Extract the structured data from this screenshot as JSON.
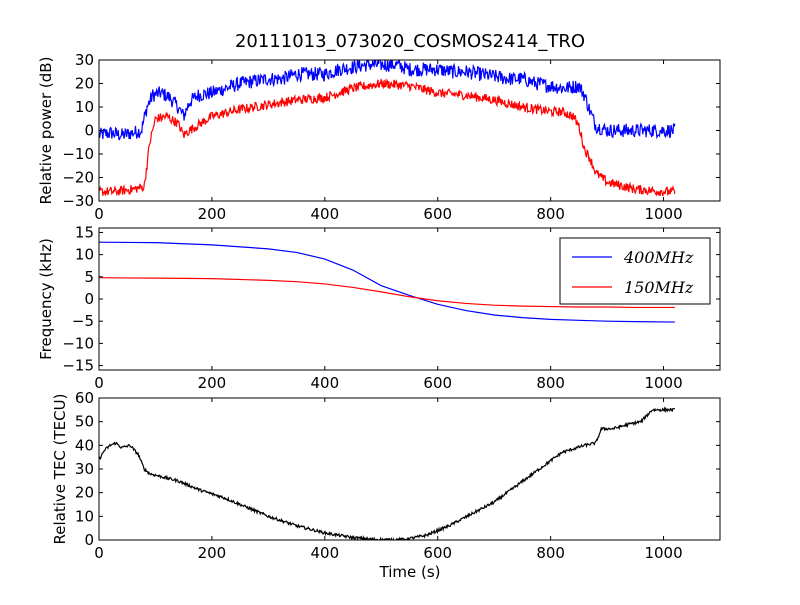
{
  "figure": {
    "title": "20111013_073020_COSMOS2414_TRO",
    "xlabel": "Time (s)",
    "colors": {
      "blue": "#0000ff",
      "red": "#ff0000",
      "black": "#000000"
    }
  },
  "chart_data": [
    {
      "type": "line",
      "title": "20111013_073020_COSMOS2414_TRO",
      "xlabel": "",
      "ylabel": "Relative power (dB)",
      "xlim": [
        0,
        1100
      ],
      "ylim": [
        -30,
        30
      ],
      "xticks": [
        0,
        200,
        400,
        600,
        800,
        1000
      ],
      "yticks": [
        -30,
        -20,
        -10,
        0,
        10,
        20,
        30
      ],
      "grid": false,
      "series": [
        {
          "color": "#0000ff",
          "noise": 3,
          "x": [
            0,
            20,
            40,
            60,
            75,
            85,
            95,
            110,
            125,
            140,
            150,
            160,
            175,
            200,
            225,
            250,
            275,
            300,
            325,
            350,
            375,
            400,
            425,
            450,
            475,
            500,
            525,
            550,
            575,
            600,
            625,
            650,
            675,
            700,
            725,
            750,
            775,
            800,
            825,
            850,
            860,
            870,
            880,
            900,
            950,
            1000,
            1020
          ],
          "y": [
            -2,
            -1,
            -2,
            -1,
            0,
            10,
            15,
            16,
            14,
            10,
            6,
            12,
            15,
            16,
            18,
            20,
            21,
            22,
            22,
            24,
            24,
            24,
            26,
            27,
            28,
            28,
            28,
            26,
            26,
            26,
            25,
            25,
            24,
            23,
            22,
            22,
            20,
            19,
            18,
            19,
            15,
            8,
            2,
            0,
            0,
            0,
            0
          ]
        },
        {
          "color": "#ff0000",
          "noise": 2,
          "x": [
            0,
            30,
            60,
            80,
            90,
            100,
            120,
            140,
            150,
            160,
            180,
            200,
            250,
            300,
            350,
            400,
            450,
            500,
            550,
            600,
            650,
            700,
            750,
            800,
            820,
            840,
            850,
            860,
            870,
            880,
            900,
            950,
            1000,
            1020
          ],
          "y": [
            -26,
            -26,
            -25,
            -24,
            -5,
            5,
            6,
            3,
            -2,
            0,
            3,
            6,
            9,
            11,
            13,
            14,
            18,
            20,
            19,
            16,
            15,
            13,
            10,
            8,
            8,
            6,
            2,
            -8,
            -12,
            -18,
            -22,
            -25,
            -26,
            -26
          ]
        }
      ]
    },
    {
      "type": "line",
      "title": "",
      "xlabel": "",
      "ylabel": "Frequency (kHz)",
      "xlim": [
        0,
        1100
      ],
      "ylim": [
        -16,
        16
      ],
      "xticks": [
        0,
        200,
        400,
        600,
        800,
        1000
      ],
      "yticks": [
        -15,
        -10,
        -5,
        0,
        5,
        10,
        15
      ],
      "grid": false,
      "legend": {
        "position": "top-right",
        "entries": [
          "400MHz",
          "150MHz"
        ]
      },
      "series": [
        {
          "name": "400MHz",
          "color": "#0000ff",
          "x": [
            0,
            100,
            200,
            300,
            350,
            400,
            450,
            500,
            550,
            600,
            650,
            700,
            750,
            800,
            850,
            900,
            950,
            1020
          ],
          "y": [
            12.8,
            12.7,
            12.2,
            11.3,
            10.5,
            9.0,
            6.5,
            3.0,
            0.8,
            -1.2,
            -2.6,
            -3.6,
            -4.2,
            -4.6,
            -4.8,
            -5.0,
            -5.1,
            -5.2
          ]
        },
        {
          "name": "150MHz",
          "color": "#ff0000",
          "x": [
            0,
            100,
            200,
            300,
            350,
            400,
            450,
            500,
            550,
            600,
            650,
            700,
            750,
            800,
            850,
            900,
            950,
            1020
          ],
          "y": [
            4.8,
            4.7,
            4.6,
            4.2,
            3.9,
            3.4,
            2.6,
            1.6,
            0.5,
            -0.4,
            -1.0,
            -1.4,
            -1.6,
            -1.7,
            -1.8,
            -1.8,
            -1.9,
            -1.9
          ]
        }
      ]
    },
    {
      "type": "line",
      "title": "",
      "xlabel": "Time (s)",
      "ylabel": "Relative TEC (TECU)",
      "xlim": [
        0,
        1100
      ],
      "ylim": [
        0,
        60
      ],
      "xticks": [
        0,
        200,
        400,
        600,
        800,
        1000
      ],
      "yticks": [
        0,
        10,
        20,
        30,
        40,
        50,
        60
      ],
      "grid": false,
      "series": [
        {
          "color": "#000000",
          "noise": 0.6,
          "x": [
            0,
            10,
            20,
            30,
            40,
            55,
            70,
            80,
            90,
            140,
            180,
            220,
            260,
            300,
            350,
            400,
            450,
            480,
            500,
            540,
            580,
            620,
            660,
            700,
            740,
            780,
            820,
            860,
            880,
            890,
            910,
            940,
            960,
            980,
            1000,
            1020
          ],
          "y": [
            34,
            38,
            40,
            41,
            39,
            40,
            36,
            30,
            28,
            25,
            21,
            18,
            14,
            10,
            6,
            3,
            1,
            0.4,
            0.1,
            0.2,
            2,
            6,
            11,
            16,
            23,
            30,
            37,
            40,
            41,
            47,
            47,
            49,
            50,
            55,
            55,
            55
          ]
        }
      ]
    }
  ]
}
